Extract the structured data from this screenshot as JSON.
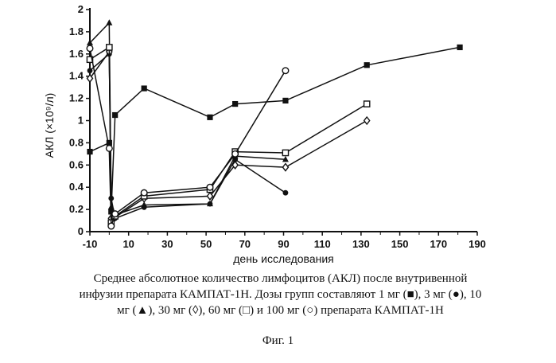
{
  "chart_data": {
    "type": "line",
    "xlabel": "день исследования",
    "ylabel": "АКЛ (×10⁹/л)",
    "xlim": [
      -10,
      190
    ],
    "ylim": [
      0,
      2
    ],
    "x_ticks": [
      "-10",
      "10",
      "30",
      "50",
      "70",
      "90",
      "110",
      "130",
      "150",
      "170",
      "190"
    ],
    "x_tick_values": [
      -10,
      10,
      30,
      50,
      70,
      90,
      110,
      130,
      150,
      170,
      190
    ],
    "x_minor_ticks": [
      "0",
      "20",
      "40",
      "60",
      "80",
      "100",
      "120",
      "140",
      "160",
      "180"
    ],
    "x_minor_tick_values": [
      0,
      20,
      40,
      60,
      80,
      100,
      120,
      140,
      160,
      180
    ],
    "y_ticks": [
      "0",
      "0.2",
      "0.4",
      "0.6",
      "0.8",
      "1",
      "1.2",
      "1.4",
      "1.6",
      "1.8",
      "2"
    ],
    "y_tick_values": [
      0,
      0.2,
      0.4,
      0.6,
      0.8,
      1.0,
      1.2,
      1.4,
      1.6,
      1.8,
      2.0
    ],
    "series": [
      {
        "marker": "square-filled",
        "x": [
          -10,
          0,
          1,
          3,
          18,
          52,
          65,
          91,
          133,
          181
        ],
        "y": [
          0.72,
          0.8,
          0.18,
          1.05,
          1.29,
          1.03,
          1.15,
          1.18,
          1.5,
          1.66
        ]
      },
      {
        "marker": "circle-filled",
        "x": [
          -10,
          0,
          1,
          3,
          18,
          52,
          65,
          91
        ],
        "y": [
          1.45,
          1.6,
          0.3,
          0.12,
          0.22,
          0.25,
          0.65,
          0.35
        ]
      },
      {
        "marker": "triangle-filled",
        "x": [
          -10,
          0,
          1,
          3,
          18,
          52,
          65,
          91
        ],
        "y": [
          1.7,
          1.88,
          0.22,
          0.15,
          0.24,
          0.25,
          0.68,
          0.65
        ]
      },
      {
        "marker": "diamond-open",
        "x": [
          -10,
          0,
          1,
          3,
          18,
          52,
          65,
          91,
          133
        ],
        "y": [
          1.38,
          1.62,
          0.12,
          0.13,
          0.3,
          0.32,
          0.6,
          0.58,
          1.0
        ]
      },
      {
        "marker": "square-open",
        "x": [
          -10,
          0,
          1,
          3,
          18,
          52,
          65,
          91,
          133
        ],
        "y": [
          1.55,
          1.66,
          0.08,
          0.14,
          0.32,
          0.38,
          0.72,
          0.71,
          1.15
        ]
      },
      {
        "marker": "circle-open",
        "x": [
          -10,
          0,
          1,
          3,
          18,
          52,
          65,
          91
        ],
        "y": [
          1.65,
          0.75,
          0.05,
          0.16,
          0.35,
          0.4,
          0.7,
          1.45
        ]
      }
    ],
    "grid": false,
    "legend": "none"
  },
  "caption": {
    "line1": "Среднее абсолютное количество лимфоцитов (АКЛ) после внутривенной",
    "line2": "инфузии препарата КАМПАТ-1Н. Дозы групп составляют 1 мг (■), 3 мг (●), 10",
    "line3": "мг (▲), 30 мг (◊), 60 мг (□) и 100 мг (○) препарата КАМПАТ-1Н"
  },
  "figure_label": "Фиг. 1"
}
